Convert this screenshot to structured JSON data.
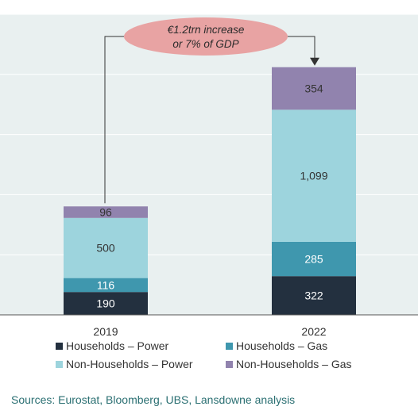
{
  "chart_data": {
    "type": "bar",
    "stacked": true,
    "categories": [
      "2019",
      "2022"
    ],
    "series": [
      {
        "name": "Households – Power",
        "values": [
          190,
          322
        ],
        "color": "#23303f",
        "label_color": "#ffffff"
      },
      {
        "name": "Households – Gas",
        "values": [
          116,
          285
        ],
        "color": "#3f97ae",
        "label_color": "#ffffff"
      },
      {
        "name": "Non-Households – Power",
        "values": [
          500,
          1099
        ],
        "color": "#9dd4dd",
        "label_color": "#333333"
      },
      {
        "name": "Non-Households – Gas",
        "values": [
          96,
          354
        ],
        "color": "#9183ae",
        "label_color": "#333333"
      }
    ],
    "data_labels": [
      [
        "190",
        "116",
        "500",
        "96"
      ],
      [
        "322",
        "285",
        "1,099",
        "354"
      ]
    ],
    "ylim": [
      0,
      2500
    ],
    "grid": true,
    "legend_position": "bottom",
    "annotation": {
      "lines": [
        "€1.2trn increase",
        "or 7% of GDP"
      ],
      "fill": "#e8a3a3"
    },
    "source": "Sources: Eurostat, Bloomberg, UBS, Lansdowne analysis"
  }
}
